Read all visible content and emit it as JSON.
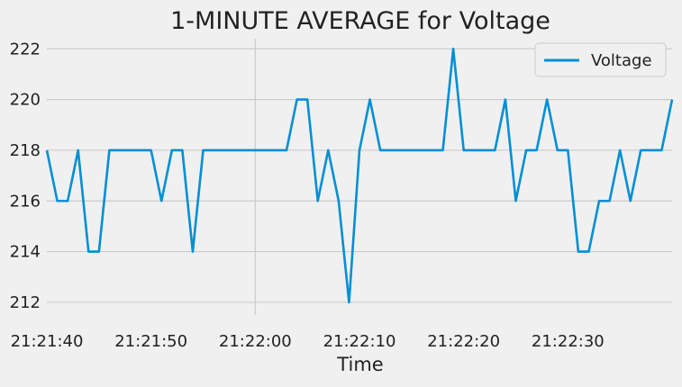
{
  "chart_data": {
    "type": "line",
    "title": "1-MINUTE AVERAGE for Voltage",
    "xlabel": "Time",
    "ylabel": "",
    "x_unit": "seconds",
    "x_start": "21:21:40",
    "x_tick_labels": [
      "21:21:40",
      "21:21:50",
      "21:22:00",
      "21:22:10",
      "21:22:20",
      "21:22:30"
    ],
    "y_ticks": [
      212,
      214,
      216,
      218,
      220,
      222
    ],
    "xlim": [
      0,
      60
    ],
    "ylim": [
      211.5,
      222.4
    ],
    "grid": true,
    "legend_position": "top-right",
    "colors": {
      "background": "#f0f0f0",
      "grid": "#cbcbcb",
      "series": "#008fd5",
      "text": "#222222"
    },
    "series": [
      {
        "name": "Voltage",
        "x": [
          0,
          1,
          2,
          3,
          4,
          5,
          6,
          7,
          8,
          9,
          10,
          11,
          12,
          13,
          14,
          15,
          16,
          17,
          18,
          19,
          20,
          21,
          22,
          23,
          24,
          25,
          26,
          27,
          28,
          29,
          30,
          31,
          32,
          33,
          34,
          35,
          36,
          37,
          38,
          39,
          40,
          41,
          42,
          43,
          44,
          45,
          46,
          47,
          48,
          49,
          50,
          51,
          52,
          53,
          54,
          55,
          56,
          57,
          58,
          59,
          60
        ],
        "values": [
          218,
          216,
          216,
          218,
          214,
          214,
          218,
          218,
          218,
          218,
          218,
          216,
          218,
          218,
          214,
          218,
          218,
          218,
          218,
          218,
          218,
          218,
          218,
          218,
          220,
          220,
          216,
          218,
          216,
          212,
          218,
          220,
          218,
          218,
          218,
          218,
          218,
          218,
          218,
          222,
          218,
          218,
          218,
          218,
          220,
          216,
          218,
          218,
          220,
          218,
          218,
          214,
          214,
          216,
          216,
          218,
          216,
          218,
          218,
          218,
          220
        ]
      }
    ]
  }
}
